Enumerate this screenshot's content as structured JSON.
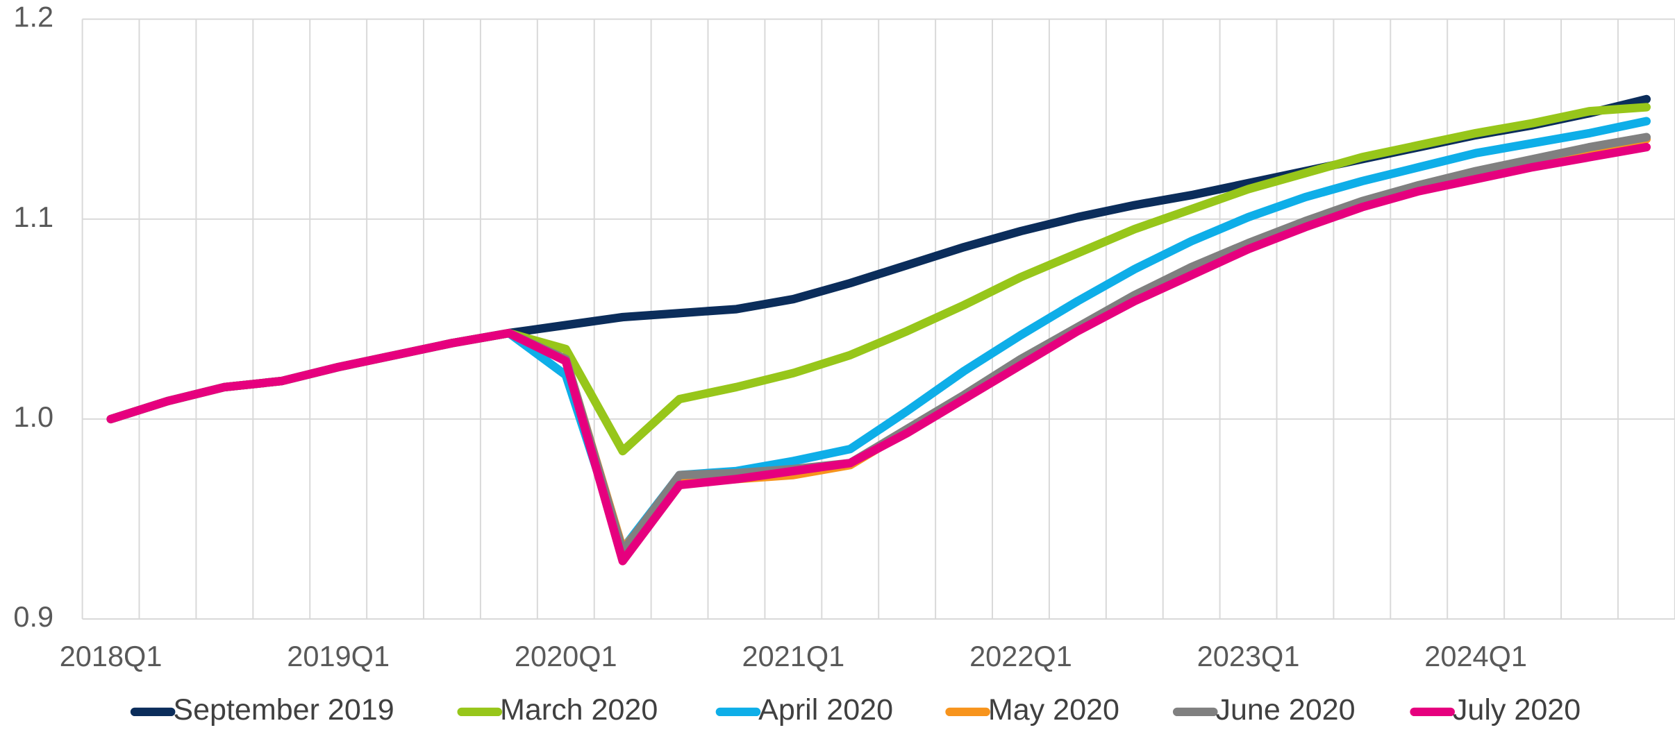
{
  "chart_data": {
    "type": "line",
    "categories": [
      "2018Q1",
      null,
      null,
      null,
      "2019Q1",
      null,
      null,
      null,
      "2020Q1",
      null,
      null,
      null,
      "2021Q1",
      null,
      null,
      null,
      "2022Q1",
      null,
      null,
      null,
      "2023Q1",
      null,
      null,
      null,
      "2024Q1",
      null,
      null,
      null
    ],
    "ylim": [
      0.9,
      1.2
    ],
    "yticks": [
      0.9,
      {
        "value": 1,
        "label": "1.0"
      },
      1.1,
      1.2
    ],
    "grid": true,
    "legend": "bottom",
    "series": [
      {
        "name": "September 2019",
        "color": "#0b2d5b",
        "values": [
          1.0,
          1.009,
          1.016,
          1.019,
          1.026,
          1.032,
          1.038,
          1.043,
          1.047,
          1.051,
          1.053,
          1.055,
          1.06,
          1.068,
          1.077,
          1.086,
          1.094,
          1.101,
          1.107,
          1.112,
          1.118,
          1.124,
          1.13,
          1.136,
          1.142,
          1.147,
          1.153,
          1.16
        ]
      },
      {
        "name": "March 2020",
        "color": "#97c61a",
        "values": [
          1.0,
          1.009,
          1.016,
          1.019,
          1.026,
          1.032,
          1.038,
          1.043,
          1.035,
          0.984,
          1.01,
          1.016,
          1.023,
          1.032,
          1.044,
          1.057,
          1.071,
          1.083,
          1.095,
          1.105,
          1.115,
          1.123,
          1.131,
          1.137,
          1.143,
          1.148,
          1.154,
          1.156
        ]
      },
      {
        "name": "April 2020",
        "color": "#0eaee8",
        "values": [
          1.0,
          1.009,
          1.016,
          1.019,
          1.026,
          1.032,
          1.038,
          1.043,
          1.022,
          0.935,
          0.972,
          0.974,
          0.979,
          0.985,
          1.004,
          1.024,
          1.042,
          1.059,
          1.075,
          1.089,
          1.101,
          1.111,
          1.119,
          1.126,
          1.133,
          1.138,
          1.143,
          1.149
        ]
      },
      {
        "name": "May 2020",
        "color": "#f7941d",
        "values": [
          1.0,
          1.009,
          1.016,
          1.019,
          1.026,
          1.032,
          1.038,
          1.043,
          1.03,
          0.935,
          0.968,
          0.97,
          0.972,
          0.977,
          0.994,
          1.011,
          1.029,
          1.045,
          1.06,
          1.074,
          1.086,
          1.097,
          1.107,
          1.116,
          1.123,
          1.129,
          1.134,
          1.14
        ]
      },
      {
        "name": "June 2020",
        "color": "#808080",
        "values": [
          1.0,
          1.009,
          1.016,
          1.019,
          1.026,
          1.032,
          1.038,
          1.043,
          1.03,
          0.934,
          0.972,
          0.973,
          0.975,
          0.978,
          0.995,
          1.012,
          1.03,
          1.046,
          1.062,
          1.076,
          1.088,
          1.099,
          1.109,
          1.117,
          1.124,
          1.13,
          1.136,
          1.141
        ]
      },
      {
        "name": "July 2020",
        "color": "#e6007e",
        "values": [
          1.0,
          1.009,
          1.016,
          1.019,
          1.026,
          1.032,
          1.038,
          1.043,
          1.029,
          0.929,
          0.967,
          0.97,
          0.974,
          0.978,
          0.993,
          1.01,
          1.027,
          1.044,
          1.059,
          1.072,
          1.085,
          1.096,
          1.106,
          1.114,
          1.12,
          1.126,
          1.131,
          1.136
        ]
      }
    ]
  }
}
